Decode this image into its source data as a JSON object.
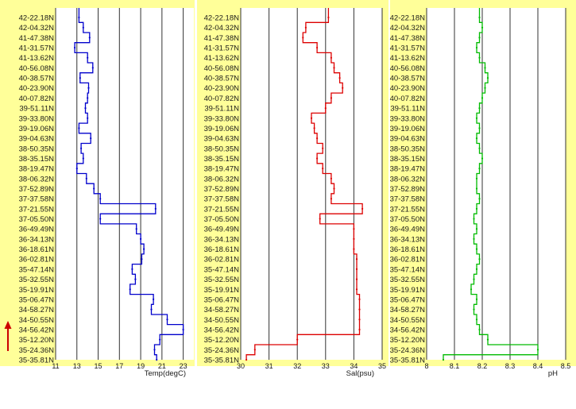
{
  "direction_arrow_icon": "up-arrow-icon",
  "colors": {
    "background": "#ffff99",
    "temp": "#0000cc",
    "sal": "#dd0000",
    "ph": "#00bb00",
    "arrow": "#cc0000",
    "grid": "#333333"
  },
  "chart_data": [
    {
      "type": "line",
      "orientation": "vertical-profile",
      "xlabel": "Temp(degC)",
      "xlim": [
        11,
        24
      ],
      "xticks": [
        11,
        13,
        15,
        17,
        19,
        21,
        23
      ],
      "ytick_labels": [
        "42-22.18N",
        "42-04.32N",
        "41-47.38N",
        "41-31.57N",
        "41-13.62N",
        "40-56.08N",
        "40-38.57N",
        "40-23.90N",
        "40-07.82N",
        "39-51.11N",
        "39-33.80N",
        "39-19.06N",
        "39-04.63N",
        "38-50.35N",
        "38-35.15N",
        "38-19.47N",
        "38-06.32N",
        "37-52.89N",
        "37-37.58N",
        "37-21.55N",
        "37-05.50N",
        "36-49.49N",
        "36-34.13N",
        "36-18.61N",
        "36-02.81N",
        "35-47.14N",
        "35-32.55N",
        "35-19.91N",
        "35-06.47N",
        "34-58.27N",
        "34-50.55N",
        "34-56.42N",
        "35-12.20N",
        "35-24.36N",
        "35-35.81N"
      ],
      "series": [
        {
          "values": [
            13.2,
            13.6,
            14.2,
            12.8,
            14.0,
            14.5,
            13.3,
            14.1,
            14.0,
            13.8,
            14.0,
            13.2,
            14.3,
            13.4,
            13.6,
            13.0,
            13.9,
            14.6,
            15.2,
            20.4,
            15.2,
            18.6,
            19.0,
            19.3,
            19.1,
            18.2,
            18.5,
            18.0,
            20.2,
            20.0,
            21.5,
            23.0,
            20.8,
            20.3,
            20.5
          ]
        }
      ]
    },
    {
      "type": "line",
      "orientation": "vertical-profile",
      "xlabel": "Sal(psu)",
      "xlim": [
        30,
        35
      ],
      "xticks": [
        30,
        31,
        32,
        33,
        34,
        35
      ],
      "ytick_labels": [
        "42-22.18N",
        "42-04.32N",
        "41-47.38N",
        "41-31.57N",
        "41-13.62N",
        "40-56.08N",
        "40-38.57N",
        "40-23.90N",
        "40-07.82N",
        "39-51.11N",
        "39-33.80N",
        "39-19.06N",
        "39-04.63N",
        "38-50.35N",
        "38-35.15N",
        "38-19.47N",
        "38-06.32N",
        "37-52.89N",
        "37-37.58N",
        "37-21.55N",
        "37-05.50N",
        "36-49.49N",
        "36-34.13N",
        "36-18.61N",
        "36-02.81N",
        "35-47.14N",
        "35-32.55N",
        "35-19.91N",
        "35-06.47N",
        "34-58.27N",
        "34-50.55N",
        "34-56.42N",
        "35-12.20N",
        "35-24.36N",
        "35-35.81N"
      ],
      "series": [
        {
          "values": [
            33.1,
            32.3,
            32.2,
            32.7,
            33.2,
            33.3,
            33.5,
            33.6,
            33.2,
            33.0,
            32.5,
            32.6,
            32.7,
            32.9,
            32.7,
            32.9,
            33.2,
            33.3,
            33.2,
            34.3,
            32.8,
            34.0,
            34.0,
            34.0,
            34.1,
            34.1,
            34.1,
            34.1,
            34.2,
            34.2,
            34.2,
            34.2,
            32.0,
            30.5,
            30.2
          ]
        }
      ]
    },
    {
      "type": "line",
      "orientation": "vertical-profile",
      "xlabel": "pH",
      "xlim": [
        8,
        8.5
      ],
      "xticks": [
        8,
        8.1,
        8.2,
        8.3,
        8.4,
        8.5
      ],
      "ytick_labels": [
        "42-22.18N",
        "42-04.32N",
        "41-47.38N",
        "41-31.57N",
        "41-13.62N",
        "40-56.08N",
        "40-38.57N",
        "40-23.90N",
        "40-07.82N",
        "39-51.11N",
        "39-33.80N",
        "39-19.06N",
        "39-04.63N",
        "38-50.35N",
        "38-35.15N",
        "38-19.47N",
        "38-06.32N",
        "37-52.89N",
        "37-37.58N",
        "37-21.55N",
        "37-05.50N",
        "36-49.49N",
        "36-34.13N",
        "36-18.61N",
        "36-02.81N",
        "35-47.14N",
        "35-32.55N",
        "35-19.91N",
        "35-06.47N",
        "34-58.27N",
        "34-50.55N",
        "34-56.42N",
        "35-12.20N",
        "35-24.36N",
        "35-35.81N"
      ],
      "series": [
        {
          "values": [
            8.19,
            8.2,
            8.19,
            8.18,
            8.19,
            8.21,
            8.22,
            8.21,
            8.2,
            8.19,
            8.18,
            8.19,
            8.18,
            8.19,
            8.2,
            8.19,
            8.18,
            8.18,
            8.19,
            8.18,
            8.17,
            8.18,
            8.17,
            8.18,
            8.19,
            8.18,
            8.17,
            8.16,
            8.18,
            8.17,
            8.18,
            8.19,
            8.22,
            8.4,
            8.06
          ]
        }
      ]
    }
  ]
}
